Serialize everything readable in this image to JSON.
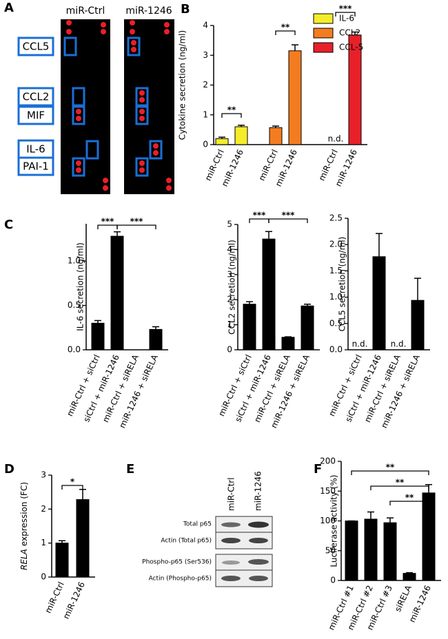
{
  "array_panel": {
    "panel": "A",
    "columns": [
      "miR-Ctrl",
      "miR-1246"
    ],
    "spots": [
      "CCL5",
      "CCL2",
      "MIF",
      "IL-6",
      "PAI-1"
    ]
  },
  "blot_panel": {
    "panel": "E",
    "columns": [
      "miR-Ctrl",
      "miR-1246"
    ],
    "rows": [
      "Total p65",
      "Actin (Total p65)",
      "Phospho-p65 (Ser536)",
      "Actin (Phospho-p65)"
    ]
  },
  "chart_data": [
    {
      "panel": "B",
      "type": "bar",
      "ylabel": "Cytokine secretion (ng/ml)",
      "categories": [
        "miR-Ctrl",
        "miR-1246"
      ],
      "series": [
        {
          "name": "IL-6",
          "color": "#f5ec2a",
          "values": [
            0.2,
            0.6
          ],
          "errors": [
            0.05,
            0.05
          ],
          "significance": "**"
        },
        {
          "name": "CCL2",
          "color": "#f47c20",
          "values": [
            0.57,
            3.15
          ],
          "errors": [
            0.05,
            0.2
          ],
          "significance": "**"
        },
        {
          "name": "CCL-5",
          "color": "#e8202a",
          "values": [
            null,
            3.68
          ],
          "errors": [
            null,
            0.1
          ],
          "value_labels": [
            "n.d.",
            null
          ],
          "significance": "***"
        }
      ],
      "ylim": [
        0,
        4
      ],
      "yticks": [
        0,
        1,
        2,
        3,
        4
      ]
    },
    {
      "panel": "C",
      "type": "bar",
      "ylabel": "IL-6 secretion (ng/ml)",
      "color": "#000000",
      "categories": [
        "miR-Ctrl + siCtrl",
        "siCtrl + miR-1246",
        "miR-Ctrl + siRELA",
        "miR-1246 + siRELA"
      ],
      "values": [
        0.3,
        1.28,
        null,
        0.23
      ],
      "errors": [
        0.03,
        0.05,
        null,
        0.03
      ],
      "significance": [
        "***",
        "***"
      ],
      "ylim": [
        0,
        1.42
      ],
      "yticks": [
        {
          "value": 0,
          "label": "0.0"
        },
        0.5,
        {
          "value": 1,
          "label": "1.0"
        }
      ]
    },
    {
      "type": "bar",
      "ylabel": "CCL2 secretion (ng/ml)",
      "color": "#000000",
      "categories": [
        "miR-Ctrl + siCtrl",
        "siCtrl + miR-1246",
        "miR-Ctrl + siRELA",
        "miR-1246 + siRELA"
      ],
      "values": [
        1.82,
        4.42,
        0.5,
        1.75
      ],
      "errors": [
        0.1,
        0.3,
        0.02,
        0.07
      ],
      "significance": [
        "***",
        "***"
      ],
      "ylim": [
        0,
        5
      ],
      "yticks": [
        0,
        1,
        2,
        3,
        4,
        5
      ]
    },
    {
      "type": "bar",
      "ylabel": "CCL5 secretion (ng/ml)",
      "color": "#000000",
      "categories": [
        "miR-Ctrl + siCtrl",
        "siCtrl + miR-1246",
        "miR-Ctrl + siRELA",
        "miR-1246 + siRELA"
      ],
      "values": [
        null,
        1.77,
        null,
        0.94
      ],
      "errors": [
        null,
        0.44,
        null,
        0.42
      ],
      "value_labels": [
        "n.d.",
        null,
        "n.d.",
        null
      ],
      "ylim": [
        0,
        2.5
      ],
      "yticks": [
        {
          "value": 0,
          "label": "0.0"
        },
        0.5,
        {
          "value": 1,
          "label": "1.0"
        },
        1.5,
        {
          "value": 2,
          "label": "2.0"
        },
        2.5
      ]
    },
    {
      "panel": "D",
      "type": "bar",
      "ylabel": {
        "gene": "RELA",
        "text": "expression (FC)"
      },
      "color": "#000000",
      "categories": [
        "miR-Ctrl",
        "miR-1246"
      ],
      "values": [
        1.0,
        2.28
      ],
      "errors": [
        0.07,
        0.3
      ],
      "significance": [
        "*"
      ],
      "ylim": [
        0,
        3
      ],
      "yticks": [
        0,
        1,
        2,
        3
      ]
    },
    {
      "panel": "F",
      "type": "bar",
      "ylabel": "Luciferase activity (%)",
      "color": "#000000",
      "categories": [
        "miR-Ctrl #1",
        "miR-Ctrl #2",
        "miR-Ctrl #3",
        "siRELA",
        "miR-1246"
      ],
      "values": [
        100,
        103,
        97,
        12,
        147
      ],
      "errors": [
        0,
        12,
        8,
        1,
        14
      ],
      "significance": [
        "**",
        "**",
        "**"
      ],
      "ylim": [
        0,
        200
      ],
      "yticks": [
        0,
        50,
        100,
        150,
        200
      ]
    }
  ]
}
